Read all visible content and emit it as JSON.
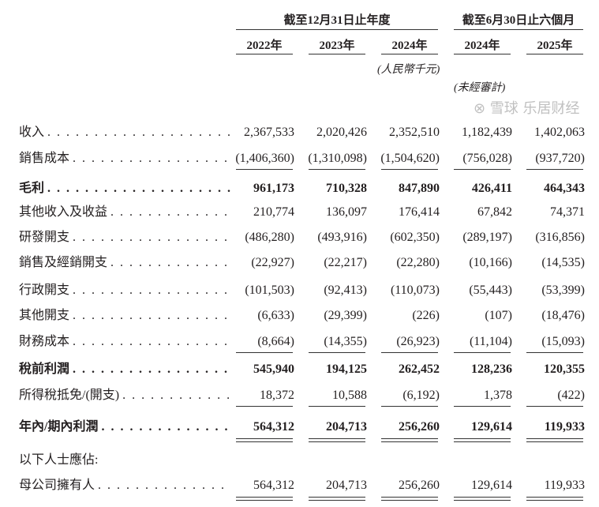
{
  "header": {
    "group_annual": "截至12月31日止年度",
    "group_interim": "截至6月30日止六個月",
    "years": [
      "2022年",
      "2023年",
      "2024年",
      "2024年",
      "2025年"
    ],
    "unit_note": "(人民幣千元)",
    "unaudited_note": "(未經審計)"
  },
  "rows": [
    {
      "label": "收入",
      "bold": false,
      "values": [
        "2,367,533",
        "2,020,426",
        "2,352,510",
        "1,182,439",
        "1,402,063"
      ]
    },
    {
      "label": "銷售成本",
      "bold": false,
      "values": [
        "(1,406,360)",
        "(1,310,098)",
        "(1,504,620)",
        "(756,028)",
        "(937,720)"
      ]
    },
    {
      "label": "毛利",
      "bold": true,
      "values": [
        "961,173",
        "710,328",
        "847,890",
        "426,411",
        "464,343"
      ]
    },
    {
      "label": "其他收入及收益",
      "bold": false,
      "values": [
        "210,774",
        "136,097",
        "176,414",
        "67,842",
        "74,371"
      ]
    },
    {
      "label": "研發開支",
      "bold": false,
      "values": [
        "(486,280)",
        "(493,916)",
        "(602,350)",
        "(289,197)",
        "(316,856)"
      ]
    },
    {
      "label": "銷售及經銷開支",
      "bold": false,
      "values": [
        "(22,927)",
        "(22,217)",
        "(22,280)",
        "(10,166)",
        "(14,535)"
      ]
    },
    {
      "label": "行政開支",
      "bold": false,
      "values": [
        "(101,503)",
        "(92,413)",
        "(110,073)",
        "(55,443)",
        "(53,399)"
      ]
    },
    {
      "label": "其他開支",
      "bold": false,
      "values": [
        "(6,633)",
        "(29,399)",
        "(226)",
        "(107)",
        "(18,476)"
      ]
    },
    {
      "label": "財務成本",
      "bold": false,
      "values": [
        "(8,664)",
        "(14,355)",
        "(26,923)",
        "(11,104)",
        "(15,093)"
      ]
    },
    {
      "label": "稅前利潤",
      "bold": true,
      "values": [
        "545,940",
        "194,125",
        "262,452",
        "128,236",
        "120,355"
      ]
    },
    {
      "label": "所得稅抵免/(開支)",
      "bold": false,
      "values": [
        "18,372",
        "10,588",
        "(6,192)",
        "1,378",
        "(422)"
      ]
    },
    {
      "label": "年內/期內利潤",
      "bold": true,
      "values": [
        "564,312",
        "204,713",
        "256,260",
        "129,614",
        "119,933"
      ]
    },
    {
      "label": "以下人士應佔:",
      "bold": false,
      "values": []
    },
    {
      "label": "母公司擁有人",
      "bold": false,
      "values": [
        "564,312",
        "204,713",
        "256,260",
        "129,614",
        "119,933"
      ]
    }
  ],
  "watermark": "雪球 乐居财经"
}
